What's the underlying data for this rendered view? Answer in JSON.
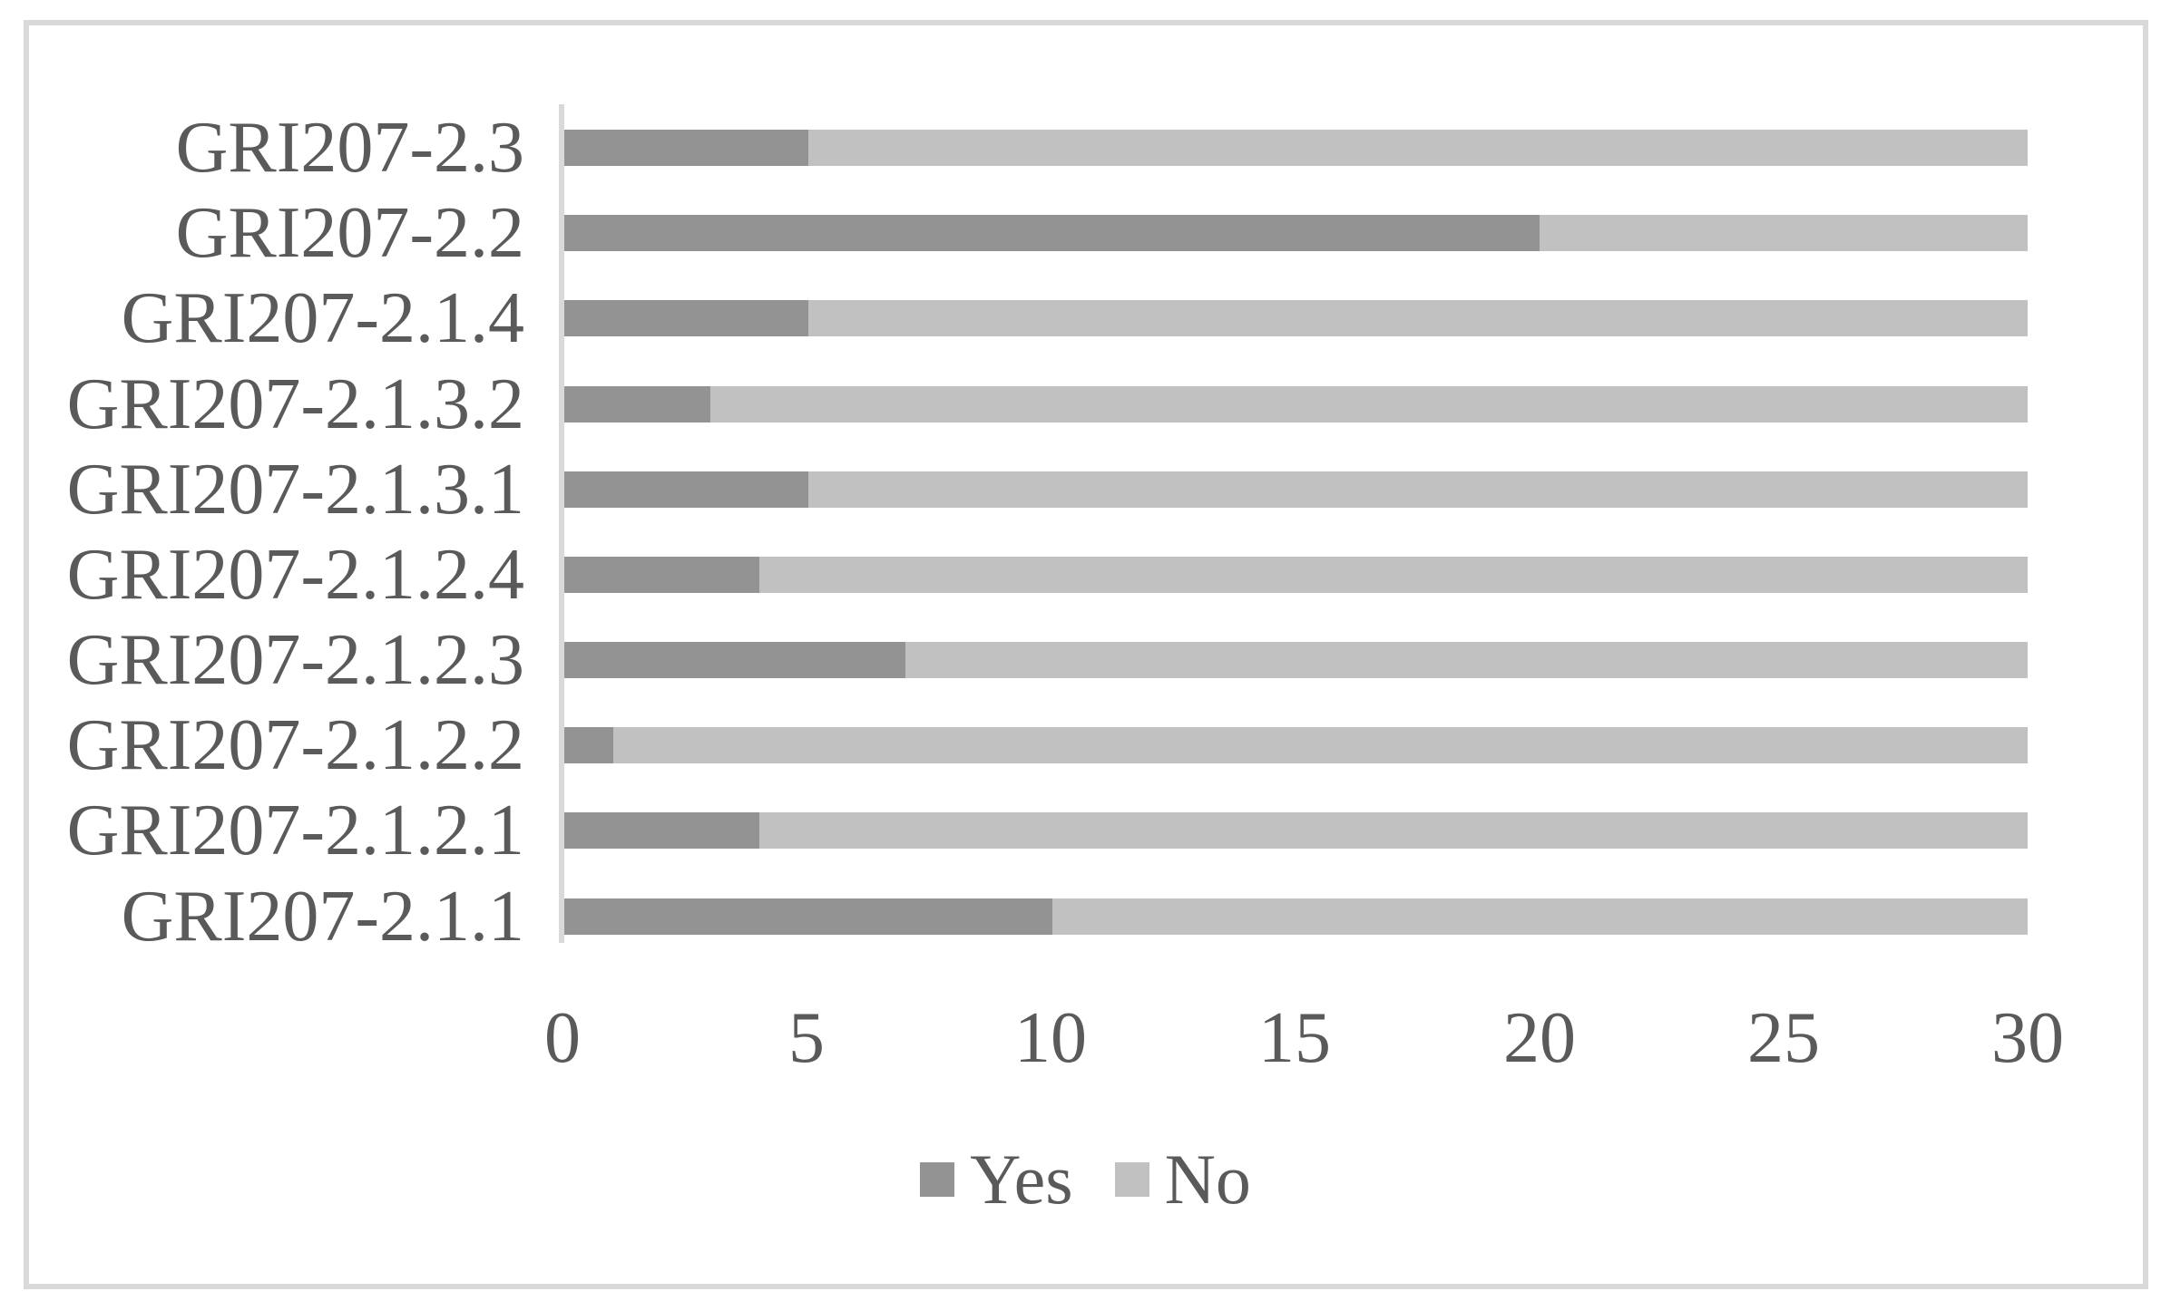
{
  "chart_data": {
    "type": "bar",
    "orientation": "horizontal",
    "stacked": true,
    "title": "",
    "xlabel": "",
    "ylabel": "",
    "categories": [
      "GRI207-2.3",
      "GRI207-2.2",
      "GRI207-2.1.4",
      "GRI207-2.1.3.2",
      "GRI207-2.1.3.1",
      "GRI207-2.1.2.4",
      "GRI207-2.1.2.3",
      "GRI207-2.1.2.2",
      "GRI207-2.1.2.1",
      "GRI207-2.1.1"
    ],
    "series": [
      {
        "name": "Yes",
        "color": "#939393",
        "values": [
          5,
          20,
          5,
          3,
          5,
          4,
          7,
          1,
          4,
          10
        ]
      },
      {
        "name": "No",
        "color": "#c1c1c1",
        "values": [
          25,
          10,
          25,
          27,
          25,
          26,
          23,
          29,
          26,
          20
        ]
      }
    ],
    "xlim": [
      0,
      30
    ],
    "x_ticks": [
      0,
      5,
      10,
      15,
      20,
      25,
      30
    ],
    "grid": false,
    "legend_position": "bottom-center",
    "axis_line_color": "#d9d9d9",
    "text_color": "#5a5a5a",
    "figure_border_color": "#d9d9d9",
    "background": "#ffffff"
  }
}
